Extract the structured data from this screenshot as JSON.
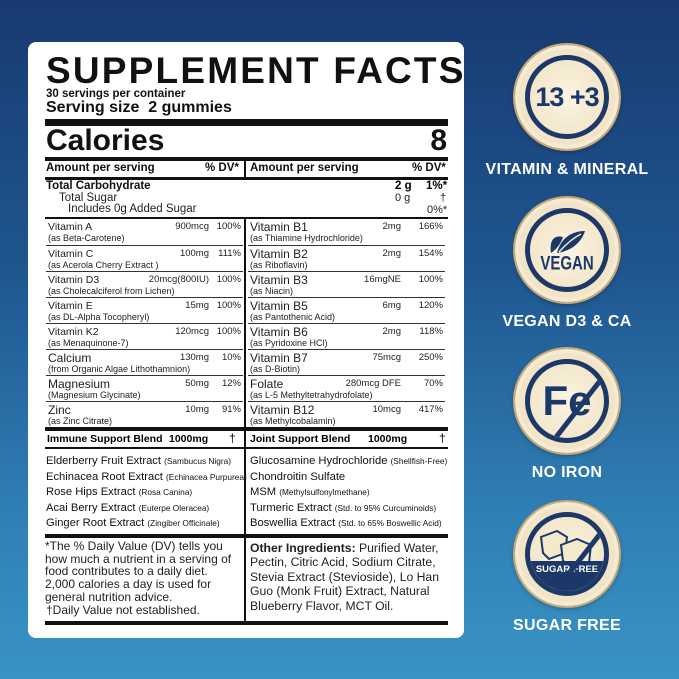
{
  "label": {
    "title": "SUPPLEMENT FACTS",
    "servings": "30 servings per container",
    "serving_size": "Serving size  2 gummies",
    "calories_label": "Calories",
    "calories_value": "8",
    "amount_header": "Amount per serving",
    "dv_header": "% DV*",
    "totals": {
      "carb": "Total Carbohydrate",
      "carb_amt": "2 g",
      "carb_dv": "1%*",
      "sugar": "Total Sugar",
      "sugar_amt": "0 g",
      "sugar_dv": "†",
      "added": "Includes 0g Added Sugar",
      "added_dv": "0%*"
    },
    "left_nutrients": [
      {
        "name": "Vitamin A",
        "source": "(as Beta-Carotene)",
        "amount": "900mcg",
        "dv": "100%"
      },
      {
        "name": "Vitamin C",
        "source": "(as Acerola Cherry Extract )",
        "amount": "100mg",
        "dv": "111%"
      },
      {
        "name": "Vitamin D3",
        "source": "(as Cholecalciferol from Lichen)",
        "amount": "20mcg(800IU)",
        "dv": "100%"
      },
      {
        "name": "Vitamin E",
        "source": "(as DL-Alpha Tocopheryl)",
        "amount": "15mg",
        "dv": "100%"
      },
      {
        "name": "Vitamin K2",
        "source": "(as Menaquinone-7)",
        "amount": "120mcg",
        "dv": "100%"
      },
      {
        "name": "Calcium",
        "source": "(from Organic Algae Lithothamnion)",
        "amount": "130mg",
        "dv": "10%"
      },
      {
        "name": "Magnesium",
        "source": "(Magnesium Glycinate)",
        "amount": "50mg",
        "dv": "12%"
      },
      {
        "name": "Zinc",
        "source": "(as Zinc Citrate)",
        "amount": "10mg",
        "dv": "91%"
      }
    ],
    "right_nutrients": [
      {
        "name": "Vitamin B1",
        "source": "(as Thiamine Hydrochloride)",
        "amount": "2mg",
        "dv": "166%"
      },
      {
        "name": "Vitamin B2",
        "source": "(as Riboflavin)",
        "amount": "2mg",
        "dv": "154%"
      },
      {
        "name": "Vitamin B3",
        "source": "(as Niacin)",
        "amount": "16mgNE",
        "dv": "100%"
      },
      {
        "name": "Vitamin B5",
        "source": "(as Pantothenic Acid)",
        "amount": "6mg",
        "dv": "120%"
      },
      {
        "name": "Vitamin B6",
        "source": "(as Pyridoxine HCl)",
        "amount": "2mg",
        "dv": "118%"
      },
      {
        "name": "Vitamin B7",
        "source": "(as D-Biotin)",
        "amount": "75mcg",
        "dv": "250%"
      },
      {
        "name": "Folate",
        "source": "(as L-5 Methyltetrahydrofolate)",
        "amount": "280mcg DFE",
        "dv": "70%"
      },
      {
        "name": "Vitamin B12",
        "source": "(as Methylcobalamin)",
        "amount": "10mcg",
        "dv": "417%"
      }
    ],
    "immune": {
      "title": "Immune Support Blend",
      "amount": "1000mg",
      "dv": "†",
      "items": [
        [
          "Elderberry Fruit Extract",
          "(Sambucus Nigra)"
        ],
        [
          "Echinacea Root Extract",
          "(Echinacea Purpurea)"
        ],
        [
          "Rose Hips Extract",
          "(Rosa Canina)"
        ],
        [
          "Acai Berry Extract",
          "(Euterpe Oleracea)"
        ],
        [
          "Ginger Root Extract",
          "(Zingiber Officinale)"
        ]
      ]
    },
    "joint": {
      "title": "Joint Support Blend",
      "amount": "1000mg",
      "dv": "†",
      "items": [
        [
          "Glucosamine Hydrochloride",
          "(Shellfish-Free)"
        ],
        [
          "Chondroitin Sulfate",
          ""
        ],
        [
          "MSM",
          "(Methylsulfonylmethane)"
        ],
        [
          "Turmeric Extract",
          "(Std. to 95% Curcuminoids)"
        ],
        [
          "Boswellia Extract",
          "(Std. to 65% Boswellic Acid)"
        ]
      ]
    },
    "dv_note": "*The % Daily Value (DV) tells you how much a nutrient in a serving of food contributes to a daily diet. 2,000 calories a day is used for general nutrition advice.",
    "dagger_note": "†Daily Value not established.",
    "other_label": "Other Ingredients:",
    "other_text": " Purified Water, Pectin, Citric Acid, Sodium Citrate, Stevia Extract (Stevioside), Lo Han Guo (Monk Fruit) Extract, Natural Blueberry Flavor, MCT Oil."
  },
  "badges": [
    {
      "icon": "13-plus-3-icon",
      "text": "13 +3",
      "label": "VITAMIN & MINERAL"
    },
    {
      "icon": "vegan-leaf-icon",
      "text": "VEGAN",
      "label": "VEGAN D3 & CA"
    },
    {
      "icon": "no-iron-icon",
      "text": "Fe",
      "label": "NO IRON"
    },
    {
      "icon": "sugar-free-icon",
      "text": "SUGAR FREE",
      "label": "SUGAR FREE"
    }
  ],
  "colors": {
    "navy": "#1b3868",
    "cream": "#f5e9cc",
    "bg_top": "#183a72",
    "bg_bottom": "#3a93c4"
  }
}
